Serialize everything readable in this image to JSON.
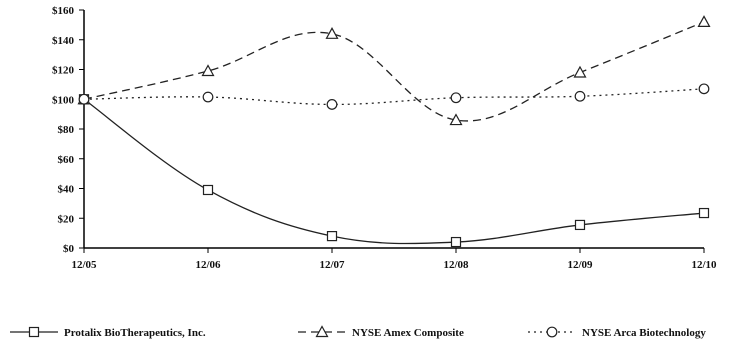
{
  "chart_data": {
    "type": "line",
    "categories": [
      "12/05",
      "12/06",
      "12/07",
      "12/08",
      "12/09",
      "12/10"
    ],
    "ylim": [
      0,
      160
    ],
    "y_ticks": [
      "$0",
      "$20",
      "$40",
      "$60",
      "$80",
      "$100",
      "$120",
      "$140",
      "$160"
    ],
    "y_tick_values": [
      0,
      20,
      40,
      60,
      80,
      100,
      120,
      140,
      160
    ],
    "grid": false,
    "legend_position": "bottom",
    "series": [
      {
        "name": "Protalix BioTherapeutics, Inc.",
        "values": [
          100,
          39,
          8,
          4,
          15.5,
          23.5
        ],
        "marker": "square",
        "line_style": "solid",
        "color": "#222222"
      },
      {
        "name": "NYSE Amex Composite",
        "values": [
          100,
          119,
          144,
          86,
          118,
          152
        ],
        "marker": "triangle",
        "line_style": "dashed",
        "color": "#222222"
      },
      {
        "name": "NYSE Arca Biotechnology",
        "values": [
          100,
          101.5,
          96.5,
          101,
          102,
          107
        ],
        "marker": "circle",
        "line_style": "dotted",
        "color": "#222222"
      }
    ]
  }
}
